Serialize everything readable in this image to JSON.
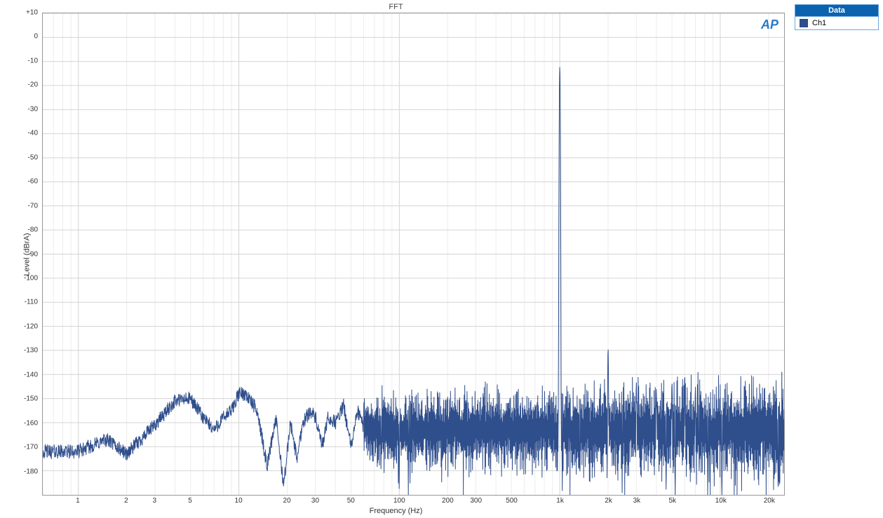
{
  "chart": {
    "type": "line",
    "title": "FFT",
    "xlabel": "Frequency (Hz)",
    "ylabel": "Level (dBrA)",
    "xscale": "log",
    "yscale": "linear",
    "xlim": [
      0.6,
      25000
    ],
    "ylim": [
      -190,
      10
    ],
    "y_ticks": [
      10,
      0,
      -10,
      -20,
      -30,
      -40,
      -50,
      -60,
      -70,
      -80,
      -90,
      -100,
      -110,
      -120,
      -130,
      -140,
      -150,
      -160,
      -170,
      -180
    ],
    "y_tick_labels": [
      "+10",
      "0",
      "-10",
      "-20",
      "-30",
      "-40",
      "-50",
      "-60",
      "-70",
      "-80",
      "-90",
      "-100",
      "-110",
      "-120",
      "-130",
      "-140",
      "-150",
      "-160",
      "-170",
      "-180"
    ],
    "x_ticks": [
      1,
      2,
      3,
      5,
      10,
      20,
      30,
      50,
      100,
      200,
      300,
      500,
      1000,
      2000,
      3000,
      5000,
      10000,
      20000
    ],
    "x_tick_labels": [
      "1",
      "2",
      "3",
      "5",
      "10",
      "20",
      "30",
      "50",
      "100",
      "200",
      "300",
      "500",
      "1k",
      "2k",
      "3k",
      "5k",
      "10k",
      "20k"
    ],
    "x_minor_log": [
      1,
      2,
      3,
      4,
      5,
      6,
      7,
      8,
      9
    ],
    "background_color": "#ffffff",
    "plot_border_color": "#999999",
    "grid_major_color": "#d4d4d4",
    "grid_minor_color": "#ececec",
    "axis_text_color": "#333333",
    "title_fontsize": 11,
    "label_fontsize": 11,
    "tick_fontsize": 10,
    "line_color": "#2f4e8c",
    "line_width": 1,
    "noise_baseline_db": -163,
    "noise_amplitude_db": 22,
    "low_freq_envelope": [
      [
        0.6,
        -172
      ],
      [
        1.0,
        -172
      ],
      [
        1.5,
        -167
      ],
      [
        2.0,
        -173
      ],
      [
        3.0,
        -161
      ],
      [
        4.0,
        -151
      ],
      [
        5.0,
        -150
      ],
      [
        6.0,
        -158
      ],
      [
        7.0,
        -163
      ],
      [
        8.0,
        -158
      ],
      [
        9.0,
        -155
      ],
      [
        10.0,
        -148
      ],
      [
        11.0,
        -148
      ],
      [
        13.0,
        -155
      ],
      [
        15.0,
        -178
      ],
      [
        17.0,
        -158
      ],
      [
        19.0,
        -186
      ],
      [
        21.0,
        -160
      ],
      [
        23.0,
        -175
      ],
      [
        25.0,
        -160
      ],
      [
        28.0,
        -155
      ],
      [
        30.0,
        -158
      ],
      [
        33.0,
        -170
      ],
      [
        36.0,
        -158
      ],
      [
        40.0,
        -160
      ],
      [
        45.0,
        -153
      ],
      [
        50.0,
        -170
      ],
      [
        55.0,
        -155
      ],
      [
        60.0,
        -162
      ]
    ],
    "peaks": [
      {
        "freq": 1000,
        "level": -12
      },
      {
        "freq": 2000,
        "level": -129
      },
      {
        "freq": 3000,
        "level": -143
      },
      {
        "freq": 4000,
        "level": -146
      },
      {
        "freq": 5000,
        "level": -143
      },
      {
        "freq": 6000,
        "level": -142
      },
      {
        "freq": 7000,
        "level": -145
      }
    ],
    "noise_density_start_hz": 60,
    "logo_text": "AP",
    "logo_color": "#2a78c7"
  },
  "legend": {
    "header": "Data",
    "header_bg": "#0b63b0",
    "header_fg": "#ffffff",
    "border_color": "#6fa8dc",
    "items": [
      {
        "label": "Ch1",
        "color": "#2f4e8c"
      }
    ]
  }
}
